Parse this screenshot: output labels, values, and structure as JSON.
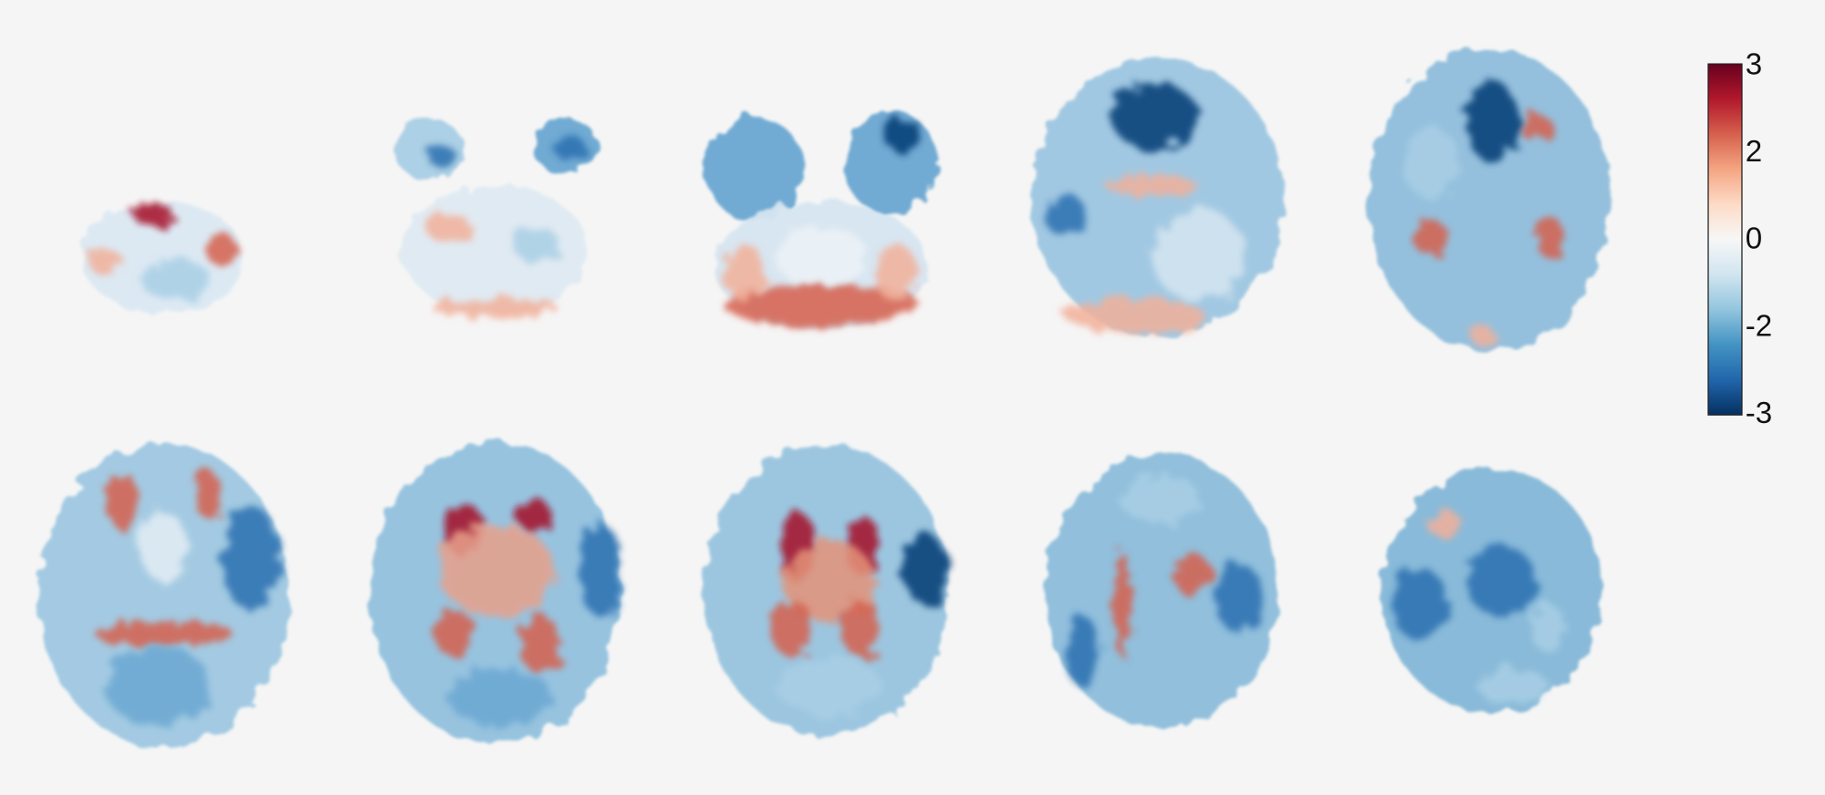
{
  "colorbar": {
    "labels": [
      "3",
      "2",
      "0",
      "-2",
      "-3"
    ]
  }
}
